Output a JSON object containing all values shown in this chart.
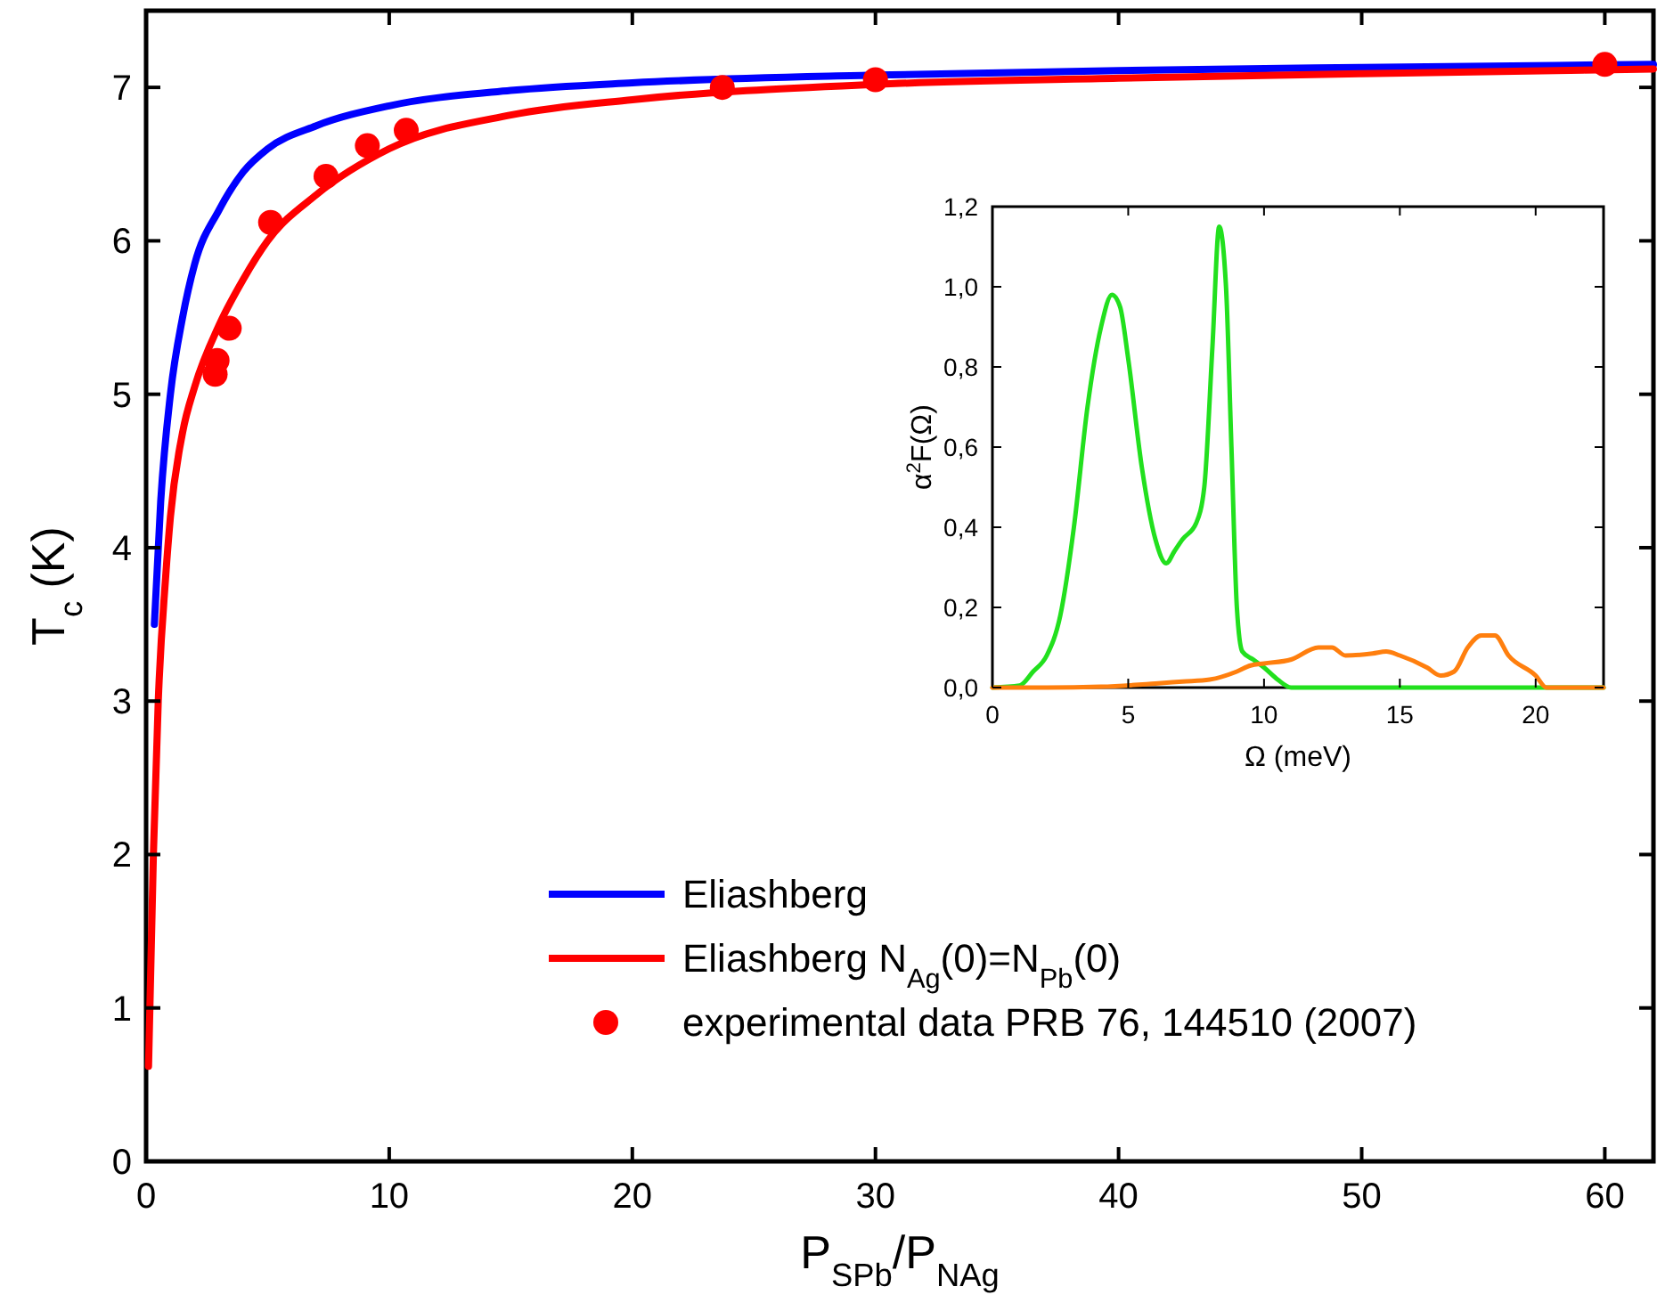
{
  "chart_data": [
    {
      "type": "line",
      "xlabel": "P$_{SPb}$/P$_{NAg}$",
      "ylabel": "T$_{c}$  (K)",
      "xlim": [
        0,
        62
      ],
      "ylim": [
        0,
        7.5
      ],
      "xticks": [
        0,
        10,
        20,
        30,
        40,
        50,
        60
      ],
      "yticks": [
        0,
        1,
        2,
        3,
        4,
        5,
        6,
        7
      ],
      "legend": "bottom right",
      "series": [
        {
          "name": "Eliashberg",
          "color": "#0000ff",
          "marker": "none",
          "x": [
            0.34,
            0.6,
            1,
            1.5,
            2,
            3,
            4,
            5,
            7,
            10,
            15,
            20,
            30,
            40,
            50,
            62
          ],
          "values": [
            3.5,
            4.3,
            5.0,
            5.5,
            5.85,
            6.2,
            6.45,
            6.6,
            6.75,
            6.88,
            6.98,
            7.03,
            7.08,
            7.11,
            7.13,
            7.15
          ]
        },
        {
          "name": "Eliashberg N$_{Ag}$(0)=N$_{Pb}$(0)",
          "color": "#ff0000",
          "marker": "none",
          "x": [
            0.1,
            0.3,
            0.5,
            0.8,
            1,
            1.5,
            2,
            3,
            4,
            5,
            7,
            10,
            15,
            20,
            30,
            40,
            50,
            62
          ],
          "values": [
            0.62,
            2.0,
            3.0,
            3.8,
            4.2,
            4.75,
            5.05,
            5.45,
            5.75,
            6.0,
            6.3,
            6.6,
            6.82,
            6.92,
            7.02,
            7.06,
            7.09,
            7.12
          ]
        },
        {
          "name": "experimental data PRB 76, 144510 (2007)",
          "type": "scatter",
          "color": "#ff0000",
          "marker": "circle",
          "x": [
            2.84,
            2.92,
            3.42,
            5.12,
            7.4,
            9.1,
            10.7,
            23.7,
            30,
            60
          ],
          "values": [
            5.13,
            5.22,
            5.43,
            6.12,
            6.42,
            6.62,
            6.72,
            7.0,
            7.05,
            7.15
          ]
        }
      ]
    },
    {
      "type": "line",
      "xlabel": "Ω   (meV)",
      "ylabel": "α$^{2}$F(Ω)",
      "xlim": [
        0,
        22.5
      ],
      "ylim": [
        0,
        1.2
      ],
      "xticks": [
        0,
        5,
        10,
        15,
        20
      ],
      "yticks": [
        {
          "value": 0,
          "label": "0,0"
        },
        {
          "value": 0.2,
          "label": "0,2"
        },
        {
          "value": 0.4,
          "label": "0,4"
        },
        {
          "value": 0.6,
          "label": "0,6"
        },
        {
          "value": 0.8,
          "label": "0,8"
        },
        {
          "value": 1,
          "label": "1,0"
        },
        {
          "value": 1.2,
          "label": "1,2"
        }
      ],
      "legend": false,
      "series": [
        {
          "color": "#22e01e",
          "marker": "none",
          "x": [
            0,
            1,
            1.5,
            2,
            2.5,
            3,
            3.5,
            4,
            4.4,
            4.7,
            5,
            5.5,
            6,
            6.4,
            6.7,
            7,
            7.5,
            7.8,
            8.1,
            8.35,
            8.6,
            8.8,
            9,
            9.2,
            9.6,
            10,
            10.5,
            11,
            22.5
          ],
          "values": [
            0,
            0.005,
            0.04,
            0.08,
            0.18,
            0.4,
            0.7,
            0.9,
            0.98,
            0.95,
            0.82,
            0.55,
            0.37,
            0.31,
            0.34,
            0.37,
            0.41,
            0.5,
            0.85,
            1.15,
            1.0,
            0.6,
            0.2,
            0.09,
            0.07,
            0.05,
            0.02,
            0,
            0
          ]
        },
        {
          "color": "#ff7f0e",
          "marker": "none",
          "x": [
            0,
            2,
            4,
            6,
            7,
            8,
            9,
            9.5,
            10,
            11,
            12,
            12.5,
            13,
            14,
            14.5,
            15,
            16,
            16.5,
            17,
            17.5,
            18,
            18.5,
            19,
            20,
            20.4,
            22.5
          ],
          "values": [
            0,
            0,
            0.002,
            0.01,
            0.015,
            0.02,
            0.04,
            0.055,
            0.06,
            0.07,
            0.1,
            0.1,
            0.08,
            0.085,
            0.09,
            0.08,
            0.05,
            0.03,
            0.04,
            0.1,
            0.13,
            0.13,
            0.08,
            0.03,
            0,
            0
          ]
        }
      ]
    }
  ]
}
